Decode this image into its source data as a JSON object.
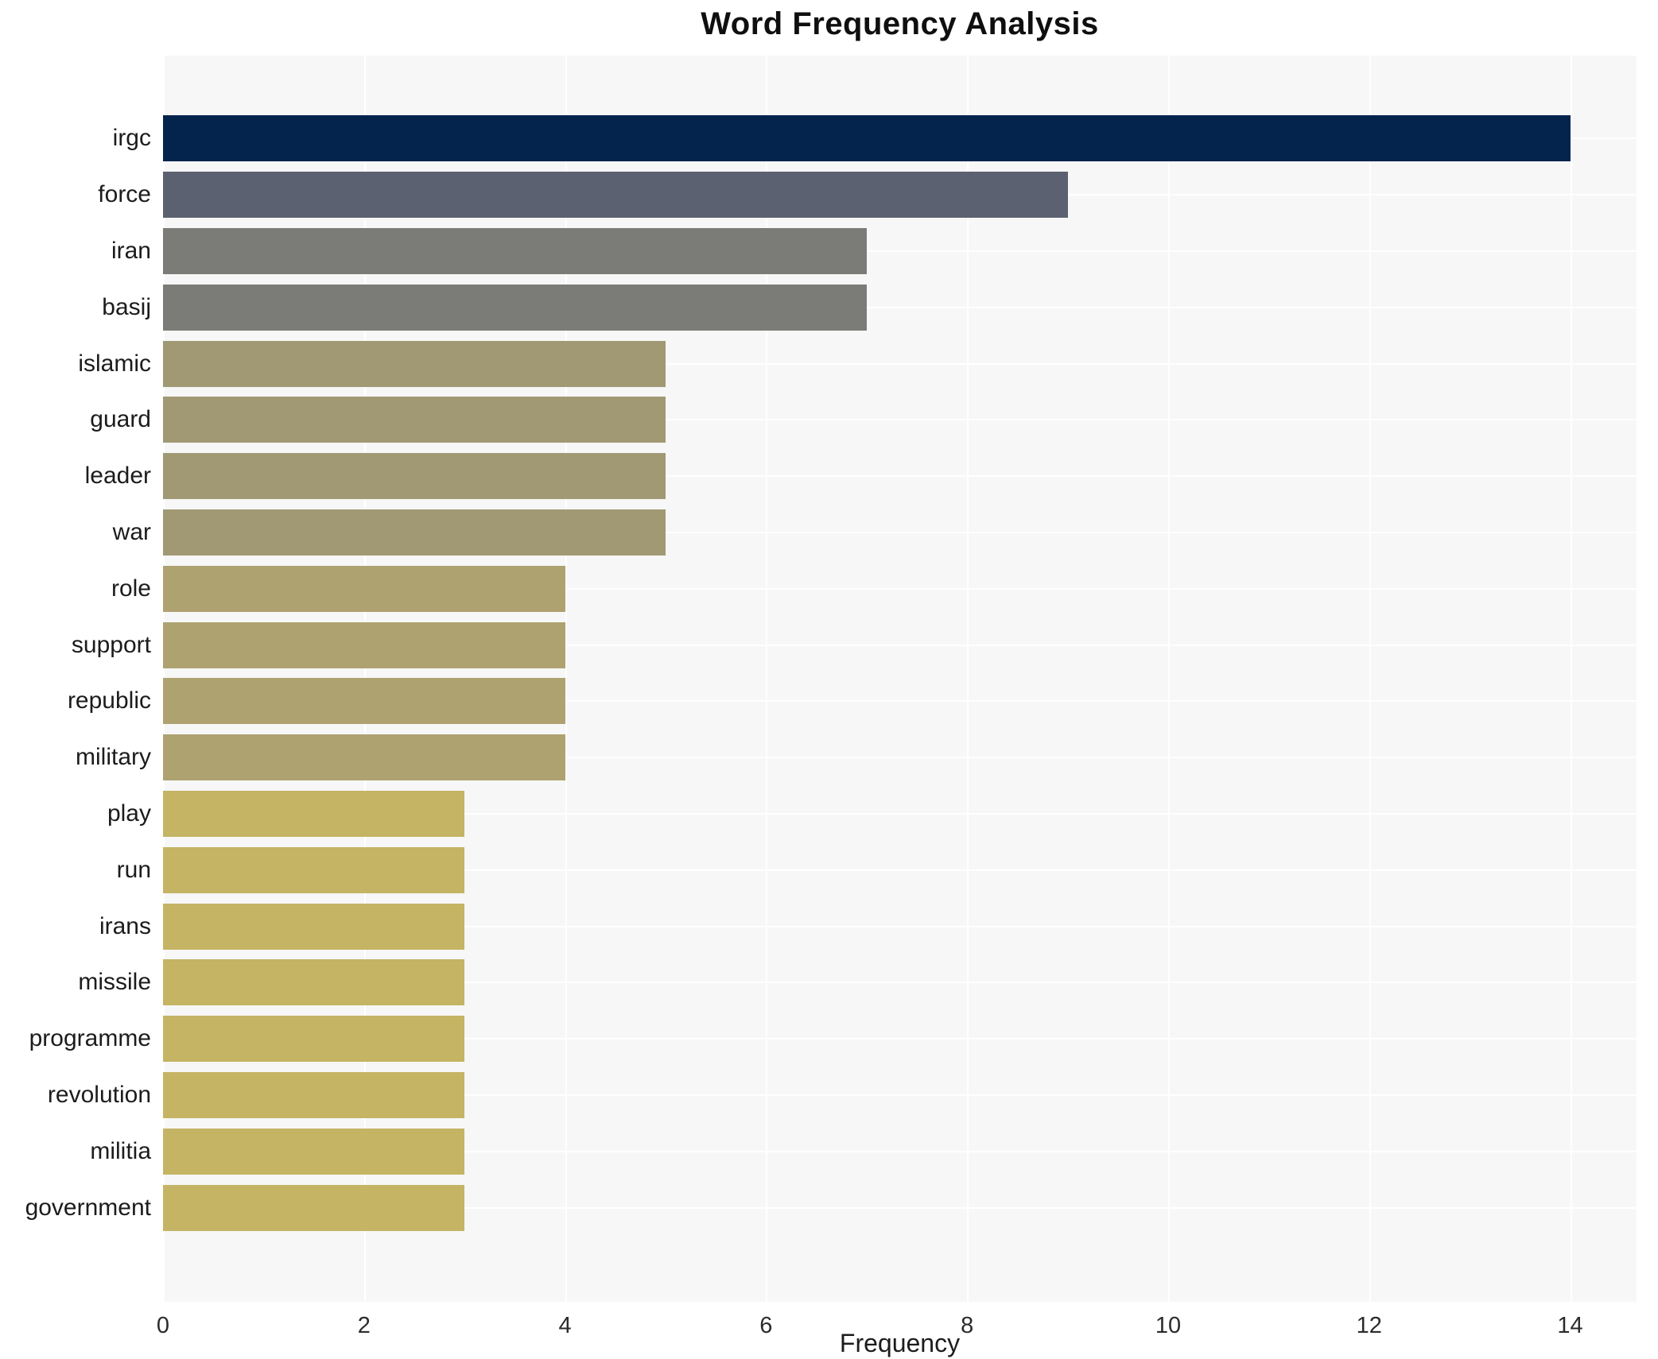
{
  "chart_data": {
    "type": "bar",
    "orientation": "horizontal",
    "title": "Word Frequency Analysis",
    "xlabel": "Frequency",
    "ylabel": "",
    "xlim": [
      0,
      14.66
    ],
    "xticks": [
      0,
      2,
      4,
      6,
      8,
      10,
      12,
      14
    ],
    "grid": true,
    "gridline_color": "#ffffff",
    "plot_background": "#f7f7f7",
    "legend": "none",
    "categories": [
      "irgc",
      "force",
      "iran",
      "basij",
      "islamic",
      "guard",
      "leader",
      "war",
      "role",
      "support",
      "republic",
      "military",
      "play",
      "run",
      "irans",
      "missile",
      "programme",
      "revolution",
      "militia",
      "government"
    ],
    "values": [
      14,
      9,
      7,
      7,
      5,
      5,
      5,
      5,
      4,
      4,
      4,
      4,
      3,
      3,
      3,
      3,
      3,
      3,
      3,
      3
    ],
    "bar_colors": [
      "#04234d",
      "#5b6170",
      "#7b7b78",
      "#7b7b78",
      "#a19974",
      "#a19974",
      "#a19974",
      "#a19974",
      "#aea271",
      "#aea271",
      "#aea271",
      "#aea271",
      "#c4b464",
      "#c4b464",
      "#c4b464",
      "#c4b464",
      "#c4b464",
      "#c4b464",
      "#c4b464",
      "#c4b464"
    ]
  }
}
